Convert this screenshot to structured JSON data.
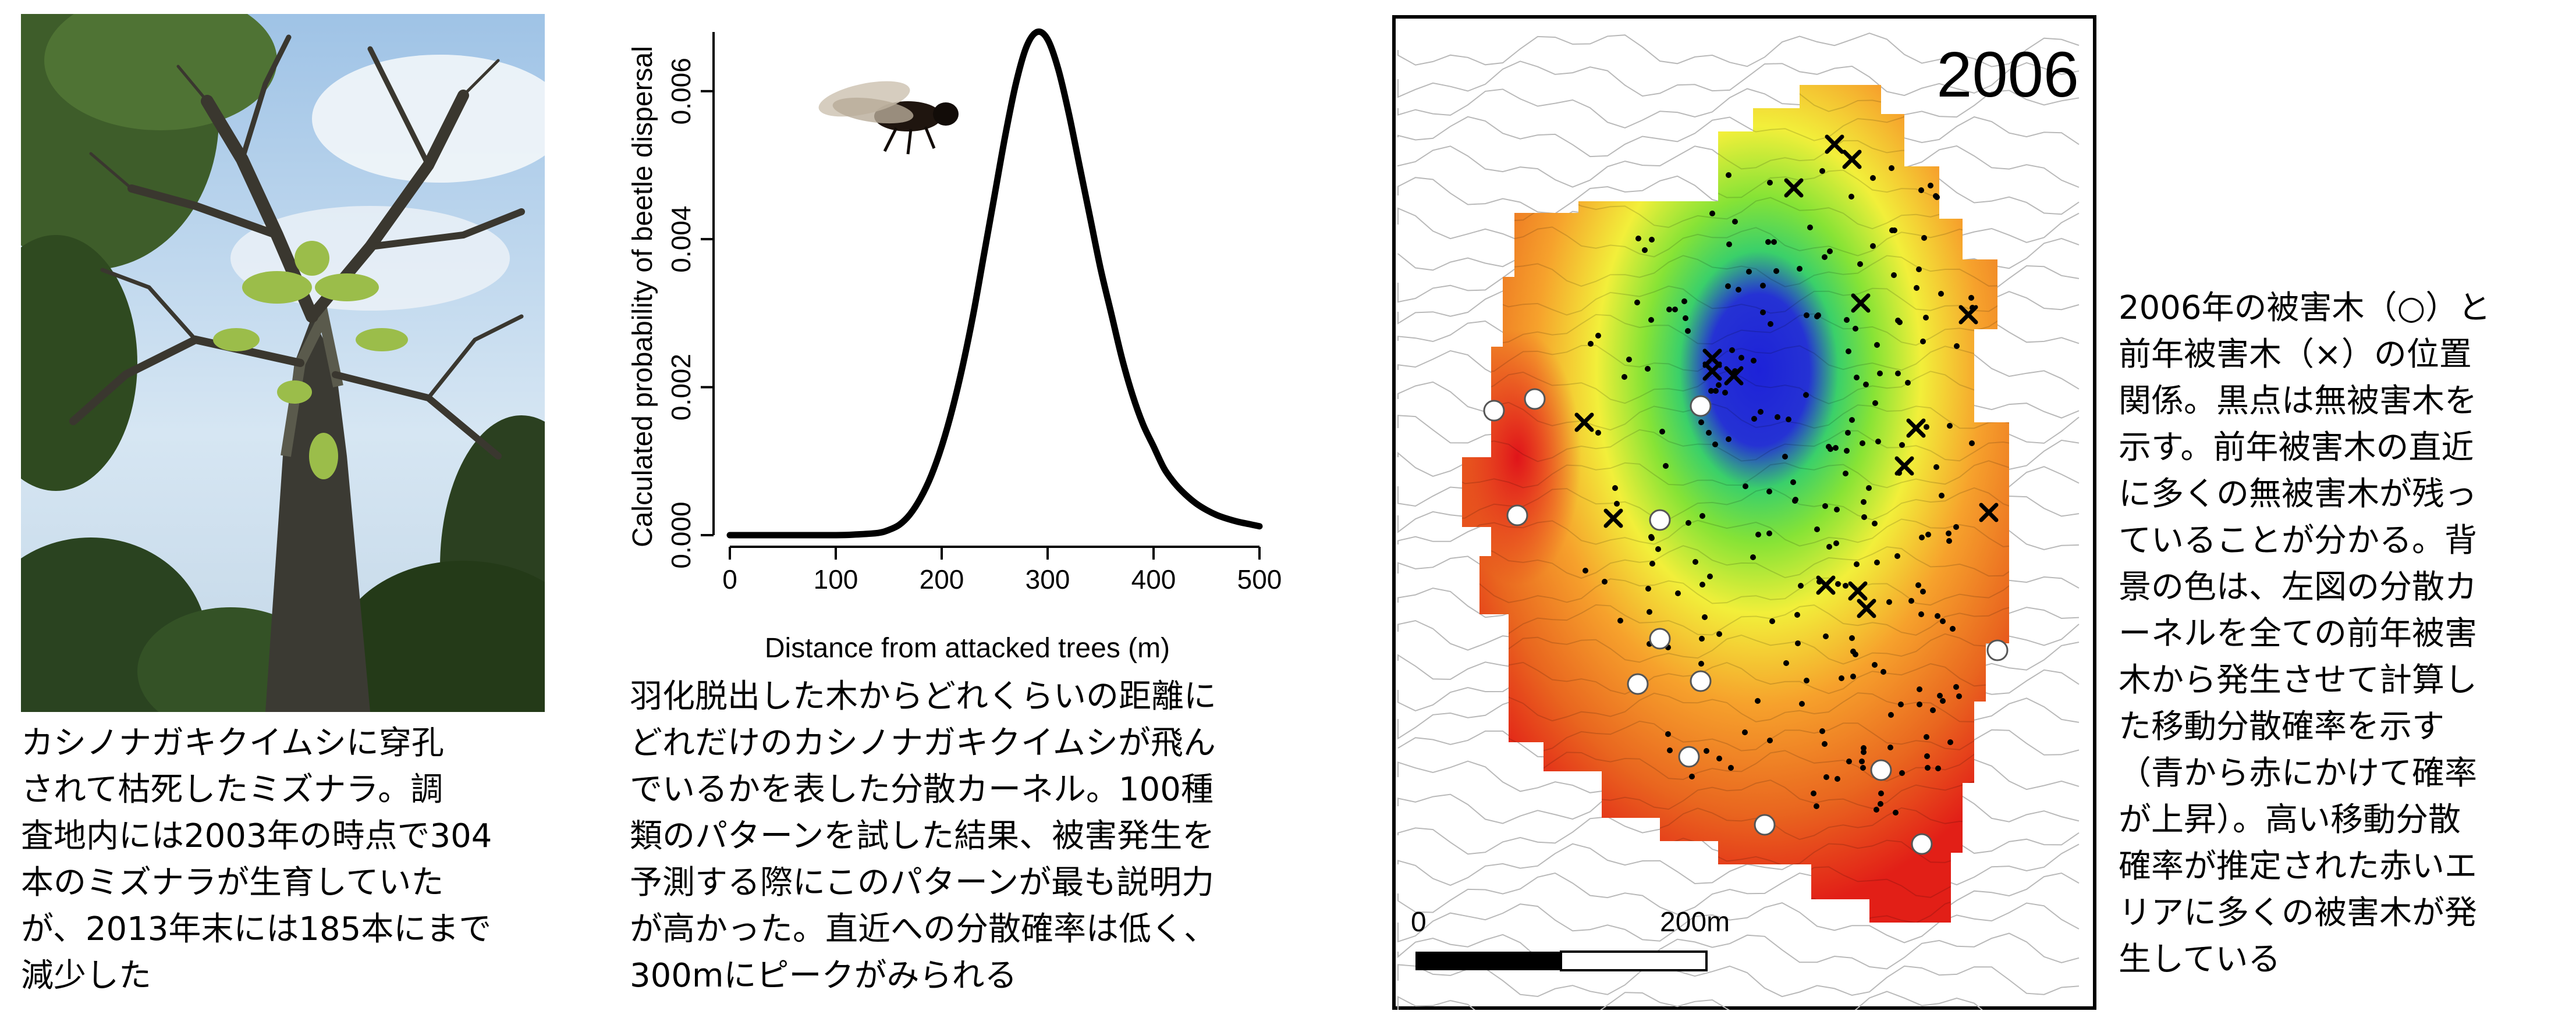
{
  "photo": {
    "caption": "カシノナガキクイムシに穿孔\nされて枯死したミズナラ。調\n査地内には2003年の時点で304\n本のミズナラが生育していた\nが、2013年末には185本にまで\n減少した"
  },
  "chart_data": {
    "type": "line",
    "title": "",
    "xlabel": "Distance from attacked trees (m)",
    "ylabel": "Calculated probability of beetle dispersal",
    "xlim": [
      0,
      500
    ],
    "ylim": [
      0,
      0.0068
    ],
    "x_ticks": [
      "0",
      "100",
      "200",
      "300",
      "400",
      "500"
    ],
    "y_ticks": [
      "0.000",
      "0.002",
      "0.004",
      "0.006"
    ],
    "series": [
      {
        "x": [
          0,
          50,
          100,
          120,
          140,
          150,
          160,
          170,
          180,
          190,
          200,
          210,
          220,
          230,
          240,
          250,
          260,
          270,
          280,
          290,
          300,
          310,
          320,
          330,
          340,
          350,
          360,
          370,
          380,
          390,
          400,
          410,
          420,
          430,
          440,
          450,
          460,
          470,
          480,
          490,
          500
        ],
        "y": [
          0,
          0,
          0,
          1e-05,
          3e-05,
          7e-05,
          0.00014,
          0.00028,
          0.0005,
          0.0008,
          0.0012,
          0.0017,
          0.0023,
          0.003,
          0.0038,
          0.0046,
          0.0054,
          0.0061,
          0.0066,
          0.0068,
          0.0067,
          0.0063,
          0.0057,
          0.005,
          0.0043,
          0.0036,
          0.003,
          0.0024,
          0.0019,
          0.0015,
          0.0012,
          0.0009,
          0.0007,
          0.00055,
          0.00043,
          0.00034,
          0.00027,
          0.00022,
          0.00018,
          0.00015,
          0.00012
        ]
      }
    ],
    "caption": "羽化脱出した木からどれくらいの距離に\nどれだけのカシノナガキクイムシが飛ん\nでいるかを表した分散カーネル。100種\n類のパターンを試した結果、被害発生を\n予測する際にこのパターンが最も説明力\nが高かった。直近への分散確率は低く、\n300mにピークがみられる"
  },
  "map": {
    "year": "2006",
    "scale_start": "0",
    "scale_end": "200m",
    "caption": "2006年の被害木（○）と\n前年被害木（×）の位置\n関係。黒点は無被害木を\n示す。前年被害木の直近\nに多くの無被害木が残っ\nていることが分かる。背\n景の色は、左図の分散カ\nーネルを全ての前年被害\n木から発生させて計算し\nた移動分散確率を示す\n（青から赤にかけて確率\nが上昇）。高い移動分散\n確率が推定された赤いエ\nリアに多くの被害木が発\n生している",
    "colors": {
      "high": "#e02418",
      "mid": "#f7e93a",
      "low": "#1f2bd6"
    }
  }
}
